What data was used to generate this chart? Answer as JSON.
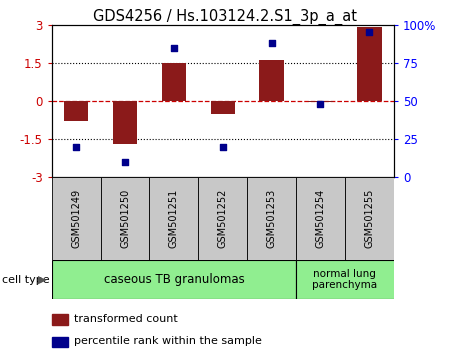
{
  "title": "GDS4256 / Hs.103124.2.S1_3p_a_at",
  "samples": [
    "GSM501249",
    "GSM501250",
    "GSM501251",
    "GSM501252",
    "GSM501253",
    "GSM501254",
    "GSM501255"
  ],
  "transformed_count": [
    -0.8,
    -1.7,
    1.5,
    -0.5,
    1.6,
    -0.05,
    2.9
  ],
  "percentile_rank": [
    20,
    10,
    85,
    20,
    88,
    48,
    95
  ],
  "ylim_left": [
    -3,
    3
  ],
  "ylim_right": [
    0,
    100
  ],
  "yticks_left": [
    -3,
    -1.5,
    0,
    1.5,
    3
  ],
  "yticks_right": [
    0,
    25,
    50,
    75,
    100
  ],
  "ytick_labels_left": [
    "-3",
    "-1.5",
    "0",
    "1.5",
    "3"
  ],
  "ytick_labels_right": [
    "0",
    "25",
    "50",
    "75",
    "100%"
  ],
  "bar_color": "#8B1A1A",
  "dot_color": "#00008B",
  "hline_color": "#CC0000",
  "group1_label": "caseous TB granulomas",
  "group2_label": "normal lung\nparenchyma",
  "group1_color": "#90EE90",
  "group2_color": "#90EE90",
  "group1_count": 5,
  "group2_count": 2,
  "cell_type_label": "cell type",
  "legend_bar_label": "transformed count",
  "legend_dot_label": "percentile rank within the sample",
  "bar_width": 0.5,
  "table_bg": "#C8C8C8",
  "spine_color": "#000000"
}
